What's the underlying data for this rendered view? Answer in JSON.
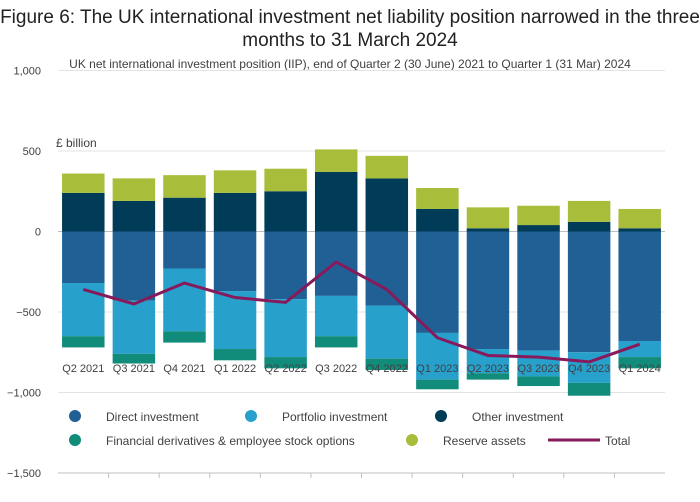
{
  "chart_data": {
    "type": "bar",
    "stacked": true,
    "title": "Figure 6: The UK international investment net liability position narrowed in the three months to 31 March 2024",
    "subtitle": "UK net international investment position (IIP), end of Quarter 2 (30 June) 2021 to Quarter 1 (31 Mar) 2024",
    "ylabel": "£ billion",
    "ylim": [
      -1500,
      1000
    ],
    "yticks": [
      -1500,
      -1000,
      -500,
      0,
      500,
      1000
    ],
    "ytick_labels": [
      "−1,500",
      "−1,000",
      "−500",
      "0",
      "500",
      "1,000"
    ],
    "grid": true,
    "legend_position": "bottom",
    "categories": [
      "Q2 2021",
      "Q3 2021",
      "Q4 2021",
      "Q1 2022",
      "Q2 2022",
      "Q3 2022",
      "Q4 2022",
      "Q1 2023",
      "Q2 2023",
      "Q3 2023",
      "Q4 2023",
      "Q1 2024"
    ],
    "series": [
      {
        "name": "Direct investment",
        "type": "bar",
        "color": "#206095",
        "values": [
          -320,
          -430,
          -230,
          -370,
          -420,
          -400,
          -460,
          -630,
          -730,
          -740,
          -750,
          -680
        ]
      },
      {
        "name": "Portfolio investment",
        "type": "bar",
        "color": "#27a0cc",
        "values": [
          -330,
          -330,
          -390,
          -360,
          -360,
          -250,
          -330,
          -290,
          -150,
          -160,
          -190,
          -100
        ]
      },
      {
        "name": "Other investment",
        "type": "bar",
        "color": "#003c57",
        "values": [
          240,
          190,
          210,
          240,
          250,
          370,
          330,
          140,
          20,
          40,
          60,
          20
        ]
      },
      {
        "name": "Financial derivatives & employee stock options",
        "type": "bar",
        "color": "#118c7b",
        "values": [
          -70,
          -60,
          -70,
          -70,
          -70,
          -70,
          -70,
          -60,
          -40,
          -60,
          -80,
          -70
        ]
      },
      {
        "name": "Reserve assets",
        "type": "bar",
        "color": "#a8bd3a",
        "values": [
          120,
          140,
          140,
          140,
          140,
          140,
          140,
          130,
          130,
          120,
          130,
          120
        ]
      },
      {
        "name": "Total",
        "type": "line",
        "color": "#871a5b",
        "values": [
          -360,
          -450,
          -320,
          -410,
          -440,
          -190,
          -360,
          -660,
          -770,
          -780,
          -810,
          -700
        ]
      }
    ]
  }
}
